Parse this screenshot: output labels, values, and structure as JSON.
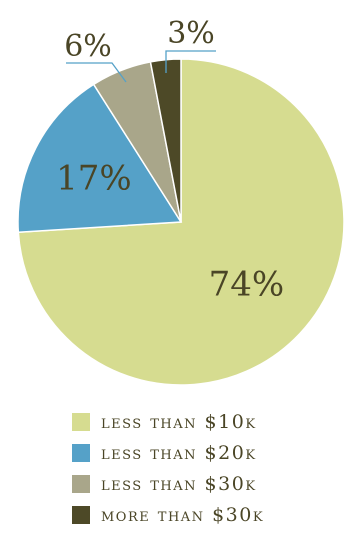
{
  "chart_data": {
    "type": "pie",
    "title": "",
    "slices": [
      {
        "label": "LESS THAN $10K",
        "value": 74,
        "display": "74%",
        "color": "#d6dc90"
      },
      {
        "label": "LESS THAN $20K",
        "value": 17,
        "display": "17%",
        "color": "#55a1c8"
      },
      {
        "label": "LESS THAN $30K",
        "value": 6,
        "display": "6%",
        "color": "#a9a68a"
      },
      {
        "label": "MORE THAN $30K",
        "value": 3,
        "display": "3%",
        "color": "#4d4927"
      }
    ],
    "leader_color": "#55a1c8",
    "legend_position": "bottom"
  }
}
